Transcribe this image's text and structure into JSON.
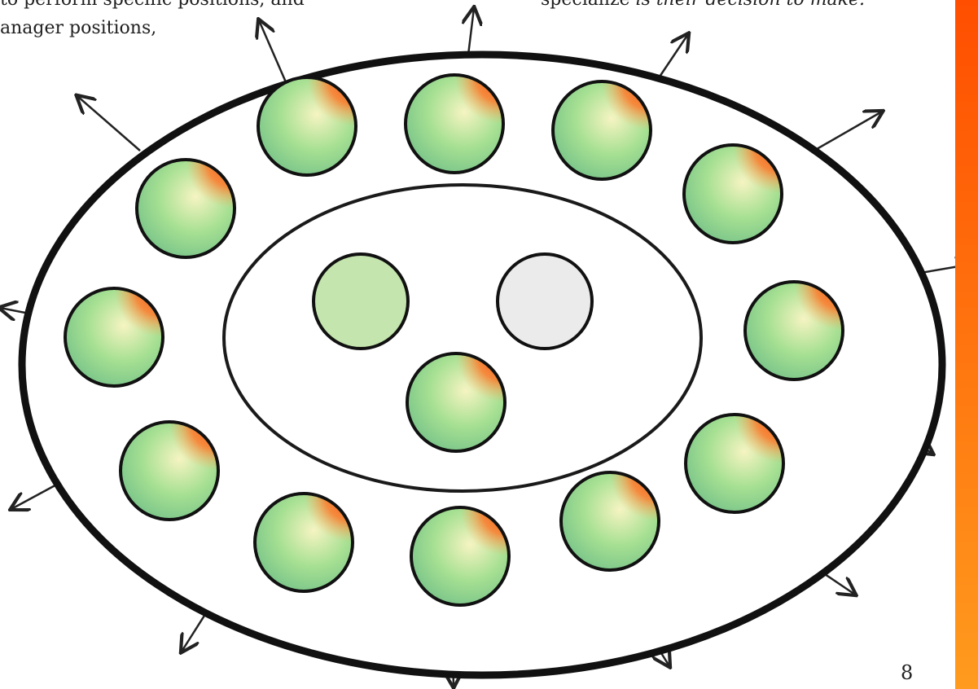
{
  "text_fragments": {
    "left_line_1": "to perform specific positions, and",
    "left_line_2": "anager positions,",
    "right_prefix": "specialize ",
    "right_italic": "is their decision to make."
  },
  "page_number": "8",
  "colors": {
    "accent_top": "#ff4e00",
    "accent_bottom": "#ff9b1e",
    "ring_stroke": "#111111",
    "ball_main": "#9ad98a",
    "ball_light": "#f4f2bf",
    "ball_blue": "#1f6fc4",
    "ball_orange": "#ff5b14",
    "plain_green": "#c4e5ad",
    "plain_gray": "#ebebeb"
  },
  "diagram": {
    "outer_ring_label": "",
    "inner_ring_label": "",
    "inner_circles": [
      {
        "kind": "plain-green"
      },
      {
        "kind": "plain-gray"
      },
      {
        "kind": "gradient"
      }
    ],
    "outer_gradient_ball_count": 12,
    "outward_arrow_count": 14
  }
}
